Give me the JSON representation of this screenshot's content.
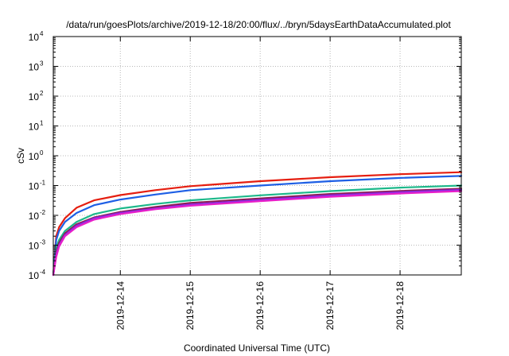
{
  "chart_data": {
    "type": "line",
    "title": "/data/run/goesPlots/archive/2019-12-18/20:00/flux/../bryn/5daysEarthDataAccumulated.plot",
    "xlabel": "Coordinated Universal Time (UTC)",
    "ylabel": "cSv",
    "yscale": "log",
    "ylim": [
      0.0001,
      10000
    ],
    "xlim": [
      "2019-12-13 01:00",
      "2019-12-18 21:00"
    ],
    "y_ticks": [
      {
        "base": "10",
        "exp": "-4",
        "value": 0.0001
      },
      {
        "base": "10",
        "exp": "-3",
        "value": 0.001
      },
      {
        "base": "10",
        "exp": "-2",
        "value": 0.01
      },
      {
        "base": "10",
        "exp": "-1",
        "value": 0.1
      },
      {
        "base": "10",
        "exp": "0",
        "value": 1
      },
      {
        "base": "10",
        "exp": "1",
        "value": 10
      },
      {
        "base": "10",
        "exp": "2",
        "value": 100
      },
      {
        "base": "10",
        "exp": "3",
        "value": 1000
      },
      {
        "base": "10",
        "exp": "4",
        "value": 10000
      }
    ],
    "x_ticks": [
      "2019-12-14",
      "2019-12-15",
      "2019-12-16",
      "2019-12-17",
      "2019-12-18"
    ],
    "grid": true,
    "legend": "none",
    "x": [
      "2019-12-13 01:00",
      "2019-12-13 02:00",
      "2019-12-13 03:00",
      "2019-12-13 05:00",
      "2019-12-13 09:00",
      "2019-12-13 15:00",
      "2019-12-14 00:00",
      "2019-12-14 12:00",
      "2019-12-15 00:00",
      "2019-12-16 00:00",
      "2019-12-17 00:00",
      "2019-12-18 00:00",
      "2019-12-18 21:00"
    ],
    "series": [
      {
        "color": "#e51e10",
        "values": [
          0.0001,
          0.002,
          0.004,
          0.008,
          0.018,
          0.032,
          0.048,
          0.07,
          0.095,
          0.14,
          0.19,
          0.24,
          0.28
        ]
      },
      {
        "color": "#1e5fe5",
        "values": [
          0.0001,
          0.0015,
          0.003,
          0.006,
          0.012,
          0.022,
          0.034,
          0.05,
          0.07,
          0.1,
          0.14,
          0.18,
          0.21
        ]
      },
      {
        "color": "#1db88a",
        "values": [
          0.0001,
          0.0008,
          0.0015,
          0.003,
          0.006,
          0.011,
          0.017,
          0.024,
          0.032,
          0.047,
          0.065,
          0.085,
          0.1
        ]
      },
      {
        "color": "#8c1a52",
        "values": [
          0.0001,
          0.0006,
          0.0012,
          0.0025,
          0.005,
          0.0085,
          0.013,
          0.019,
          0.026,
          0.037,
          0.052,
          0.066,
          0.078
        ]
      },
      {
        "color": "#8a2be2",
        "values": [
          0.0001,
          0.0005,
          0.001,
          0.0022,
          0.0045,
          0.008,
          0.012,
          0.017,
          0.023,
          0.033,
          0.047,
          0.06,
          0.072
        ]
      },
      {
        "color": "#e81ec9",
        "values": [
          0.0001,
          0.0004,
          0.0009,
          0.002,
          0.004,
          0.0072,
          0.011,
          0.016,
          0.021,
          0.03,
          0.042,
          0.054,
          0.065
        ]
      }
    ]
  }
}
